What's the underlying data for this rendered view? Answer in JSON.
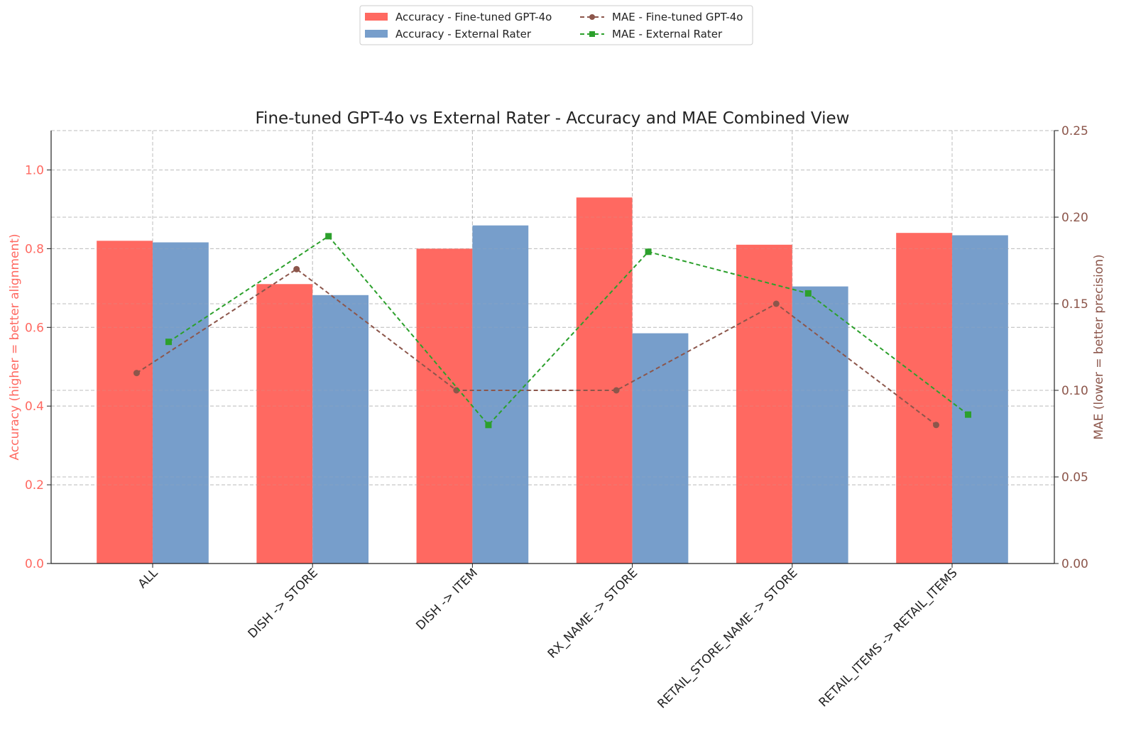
{
  "chart_data": {
    "type": "bar",
    "title": "Fine-tuned GPT-4o vs External Rater - Accuracy and MAE Combined View",
    "xlabel": "",
    "ylabel": "Accuracy (higher = better alignment)",
    "y2label": "MAE (lower = better precision)",
    "ylim": [
      0,
      1.1
    ],
    "y2lim": [
      0,
      0.25
    ],
    "yticks": [
      "0.0",
      "0.2",
      "0.4",
      "0.6",
      "0.8",
      "1.0"
    ],
    "y2ticks": [
      "0.00",
      "0.05",
      "0.10",
      "0.15",
      "0.20",
      "0.25"
    ],
    "grid": true,
    "legend_position": "top-center",
    "categories": [
      "ALL",
      "DISH -> STORE",
      "DISH -> ITEM",
      "RX_NAME -> STORE",
      "RETAIL_STORE_NAME -> STORE",
      "RETAIL_ITEMS -> RETAIL_ITEMS"
    ],
    "series": [
      {
        "name": "Accuracy - Fine-tuned GPT-4o",
        "kind": "bar",
        "axis": "left",
        "color": "#ff6961",
        "values": [
          0.82,
          0.71,
          0.8,
          0.93,
          0.81,
          0.84
        ]
      },
      {
        "name": "Accuracy - External Rater",
        "kind": "bar",
        "axis": "left",
        "color": "#779ecb",
        "values": [
          0.816,
          0.682,
          0.859,
          0.585,
          0.704,
          0.834
        ]
      },
      {
        "name": "MAE - Fine-tuned GPT-4o",
        "kind": "line",
        "axis": "right",
        "color": "#8c564b",
        "marker": "circle",
        "values": [
          0.11,
          0.17,
          0.1,
          0.1,
          0.15,
          0.08
        ]
      },
      {
        "name": "MAE - External Rater",
        "kind": "line",
        "axis": "right",
        "color": "#2ca02c",
        "marker": "square",
        "values": [
          0.128,
          0.189,
          0.08,
          0.18,
          0.156,
          0.086
        ]
      }
    ],
    "colors": {
      "left_axis": "#ff6961",
      "right_axis": "#8c564b"
    }
  }
}
